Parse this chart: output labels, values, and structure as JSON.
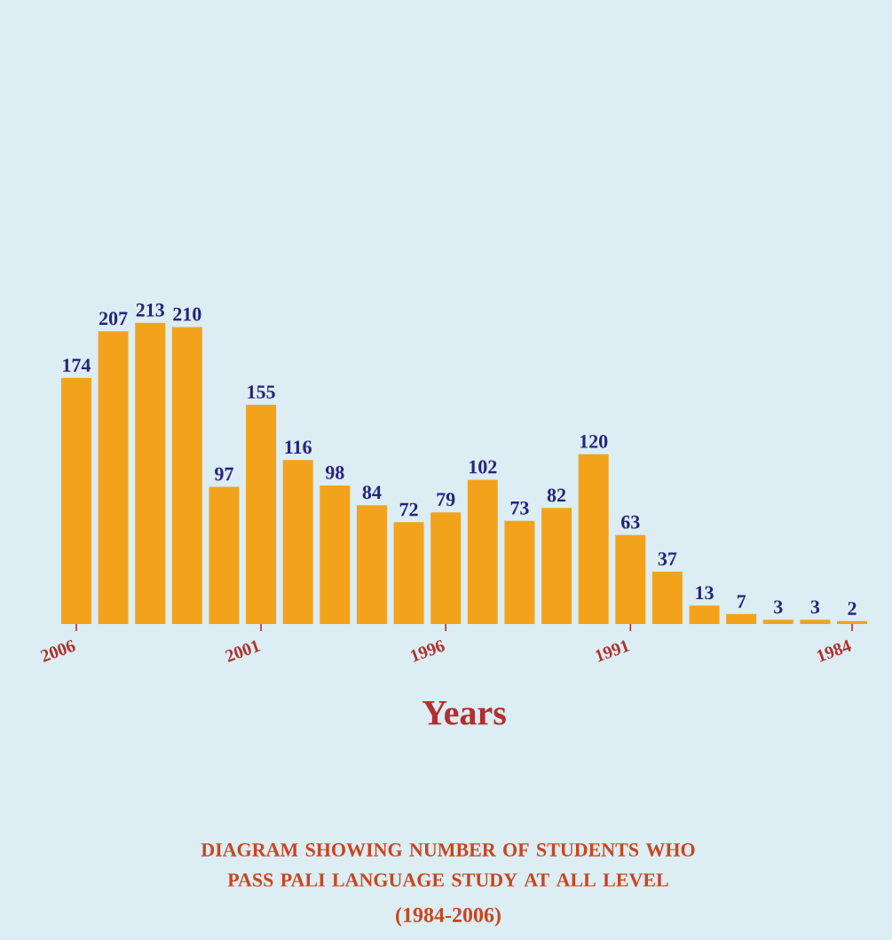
{
  "chart_data": {
    "type": "bar",
    "title": "DIAGRAM SHOWING NUMBER OF STUDENTS WHO PASS PALI LANGUAGE STUDY AT ALL LEVEL",
    "subtitle": "(1984-2006)",
    "xlabel": "Years",
    "categories": [
      "2006",
      null,
      null,
      null,
      null,
      "2001",
      null,
      null,
      null,
      null,
      "1996",
      null,
      null,
      null,
      null,
      "1991",
      null,
      null,
      null,
      null,
      null,
      "1984"
    ],
    "values": [
      174,
      207,
      213,
      210,
      97,
      155,
      116,
      98,
      84,
      72,
      79,
      102,
      73,
      82,
      120,
      63,
      37,
      13,
      7,
      3,
      3,
      2
    ],
    "color": "#f2a31b",
    "data_labels": true
  }
}
